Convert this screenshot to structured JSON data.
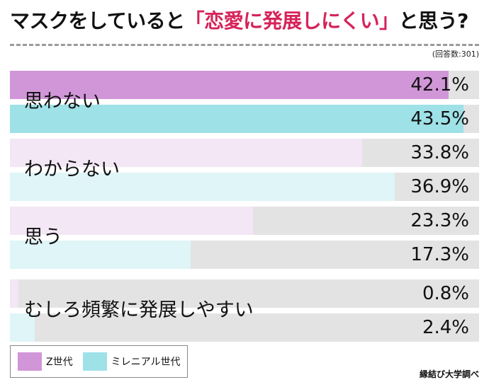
{
  "title": {
    "prefix": "マスクをしていると",
    "highlight": "「恋愛に発展しにくい」",
    "suffix": "と思う?"
  },
  "respondents": "(回答数:301)",
  "source": "縁結び大学調べ",
  "colors": {
    "series1_strong": "#d196d8",
    "series1_light": "#f3e6f5",
    "series2_strong": "#9ee1e7",
    "series2_light": "#dff5f7",
    "track": "#e3e3e3",
    "accent": "#d6235a"
  },
  "chart_data": {
    "type": "bar",
    "orientation": "horizontal",
    "title": "マスクをしていると「恋愛に発展しにくい」と思う?",
    "xlim": [
      0,
      45
    ],
    "categories": [
      "思わない",
      "わからない",
      "思う",
      "むしろ頻繁に発展しやすい"
    ],
    "series": [
      {
        "name": "Z世代",
        "values": [
          42.1,
          33.8,
          23.3,
          0.8
        ],
        "labels": [
          "42.1%",
          "33.8%",
          "23.3%",
          "0.8%"
        ]
      },
      {
        "name": "ミレニアル世代",
        "values": [
          43.5,
          36.9,
          17.3,
          2.4
        ],
        "labels": [
          "43.5%",
          "36.9%",
          "17.3%",
          "2.4%"
        ]
      }
    ],
    "legend": [
      "Z世代",
      "ミレニアル世代"
    ],
    "legend_position": "bottom-left"
  }
}
